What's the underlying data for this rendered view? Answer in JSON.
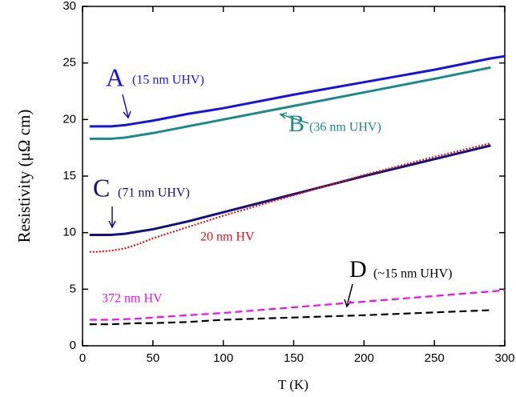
{
  "chart_data": {
    "type": "line",
    "x_label": "T (K)",
    "y_label": "Resistivity  (μΩ cm)",
    "x": [
      5,
      10,
      20,
      30,
      40,
      50,
      75,
      100,
      150,
      200,
      250,
      290,
      300
    ],
    "series": [
      {
        "color": "#1515e0",
        "style": "solid",
        "values": [
          19.4,
          19.4,
          19.4,
          19.5,
          19.7,
          19.9,
          20.5,
          21.0,
          22.2,
          23.3,
          24.4,
          25.4,
          25.6
        ]
      },
      {
        "color": "#1a8a8a",
        "style": "solid",
        "values": [
          18.3,
          18.3,
          18.3,
          18.4,
          18.6,
          18.8,
          19.4,
          20.0,
          21.2,
          22.4,
          23.6,
          24.6,
          null
        ]
      },
      {
        "color": "#12127a",
        "style": "solid",
        "values": [
          9.8,
          9.8,
          9.8,
          9.9,
          10.1,
          10.3,
          11.0,
          11.8,
          13.4,
          15.0,
          16.5,
          17.7,
          null
        ]
      },
      {
        "color": "#e81010",
        "style": "dotted",
        "values": [
          8.3,
          8.3,
          8.4,
          8.6,
          9.0,
          9.5,
          10.5,
          11.5,
          13.3,
          15.1,
          16.7,
          17.9,
          null
        ]
      },
      {
        "color": "#ee10ee",
        "style": "dashed",
        "values": [
          2.3,
          2.3,
          2.3,
          2.35,
          2.4,
          2.5,
          2.7,
          2.9,
          3.4,
          3.9,
          4.4,
          4.8,
          4.9
        ]
      },
      {
        "color": "#000000",
        "style": "dashed",
        "values": [
          1.9,
          1.9,
          1.9,
          1.95,
          2.0,
          2.0,
          2.1,
          2.3,
          2.5,
          2.7,
          2.95,
          3.15,
          null
        ]
      }
    ],
    "annotations": [
      {
        "text": "A",
        "color": "#1515e0"
      },
      {
        "text": "(15 nm UHV)",
        "color": "#1515e0"
      },
      {
        "text": "B",
        "color": "#1a8a8a"
      },
      {
        "text": "(36 nm UHV)",
        "color": "#1a8a8a"
      },
      {
        "text": "C",
        "color": "#12127a"
      },
      {
        "text": "(71 nm UHV)",
        "color": "#12127a"
      },
      {
        "text": "20 nm HV",
        "color": "#e81010"
      },
      {
        "text": "372 nm HV",
        "color": "#ee10ee"
      },
      {
        "text": "D",
        "color": "#000000"
      },
      {
        "text": "(~15 nm UHV)",
        "color": "#000000"
      }
    ],
    "xlim": [
      0,
      300
    ],
    "ylim": [
      0,
      30
    ],
    "xticks": [
      0,
      50,
      100,
      150,
      200,
      250,
      300
    ],
    "yticks": [
      0,
      5,
      10,
      15,
      20,
      25,
      30
    ]
  }
}
